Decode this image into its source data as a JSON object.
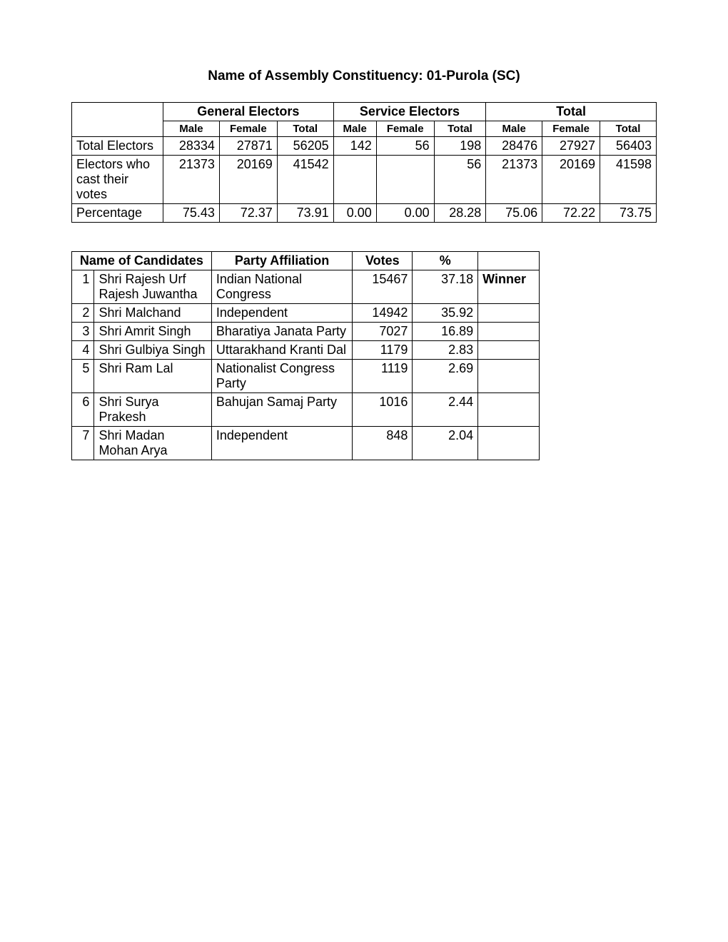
{
  "title": "Name of Assembly Constituency: 01-Purola (SC)",
  "electors_table": {
    "header_groups": [
      "General Electors",
      "Service Electors",
      "Total"
    ],
    "sub_headers": [
      "Male",
      "Female",
      "Total",
      "Male",
      "Female",
      "Total",
      "Male",
      "Female",
      "Total"
    ],
    "rows": [
      {
        "label": "Total Electors",
        "values": [
          "28334",
          "27871",
          "56205",
          "142",
          "56",
          "198",
          "28476",
          "27927",
          "56403"
        ]
      },
      {
        "label": "Electors who cast their votes",
        "values": [
          "21373",
          "20169",
          "41542",
          "",
          "",
          "56",
          "21373",
          "20169",
          "41598"
        ]
      },
      {
        "label": "Percentage",
        "values": [
          "75.43",
          "72.37",
          "73.91",
          "0.00",
          "0.00",
          "28.28",
          "75.06",
          "72.22",
          "73.75"
        ]
      }
    ]
  },
  "candidates_table": {
    "headers": [
      "Name of Candidates",
      "Party Affiliation",
      "Votes",
      "%",
      ""
    ],
    "rows": [
      {
        "idx": "1",
        "name": "Shri Rajesh Urf Rajesh Juwantha",
        "party": "Indian National Congress",
        "party_justify": true,
        "votes": "15467",
        "pct": "37.18",
        "result": "Winner"
      },
      {
        "idx": "2",
        "name": "Shri Malchand",
        "party": "Independent",
        "party_justify": false,
        "votes": "14942",
        "pct": "35.92",
        "result": ""
      },
      {
        "idx": "3",
        "name": "Shri Amrit Singh",
        "party": "Bharatiya Janata Party",
        "party_justify": false,
        "votes": "7027",
        "pct": "16.89",
        "result": ""
      },
      {
        "idx": "4",
        "name": "Shri Gulbiya Singh",
        "party": "Uttarakhand Kranti Dal",
        "party_justify": false,
        "votes": "1179",
        "pct": "2.83",
        "result": ""
      },
      {
        "idx": "5",
        "name": "Shri Ram Lal",
        "party": "Nationalist Congress Party",
        "party_justify": true,
        "votes": "1119",
        "pct": "2.69",
        "result": ""
      },
      {
        "idx": "6",
        "name": "Shri Surya Prakesh",
        "party": "Bahujan Samaj Party",
        "party_justify": false,
        "votes": "1016",
        "pct": "2.44",
        "result": ""
      },
      {
        "idx": "7",
        "name": "Shri Madan Mohan Arya",
        "party": "Independent",
        "party_justify": false,
        "votes": "848",
        "pct": "2.04",
        "result": ""
      }
    ]
  }
}
